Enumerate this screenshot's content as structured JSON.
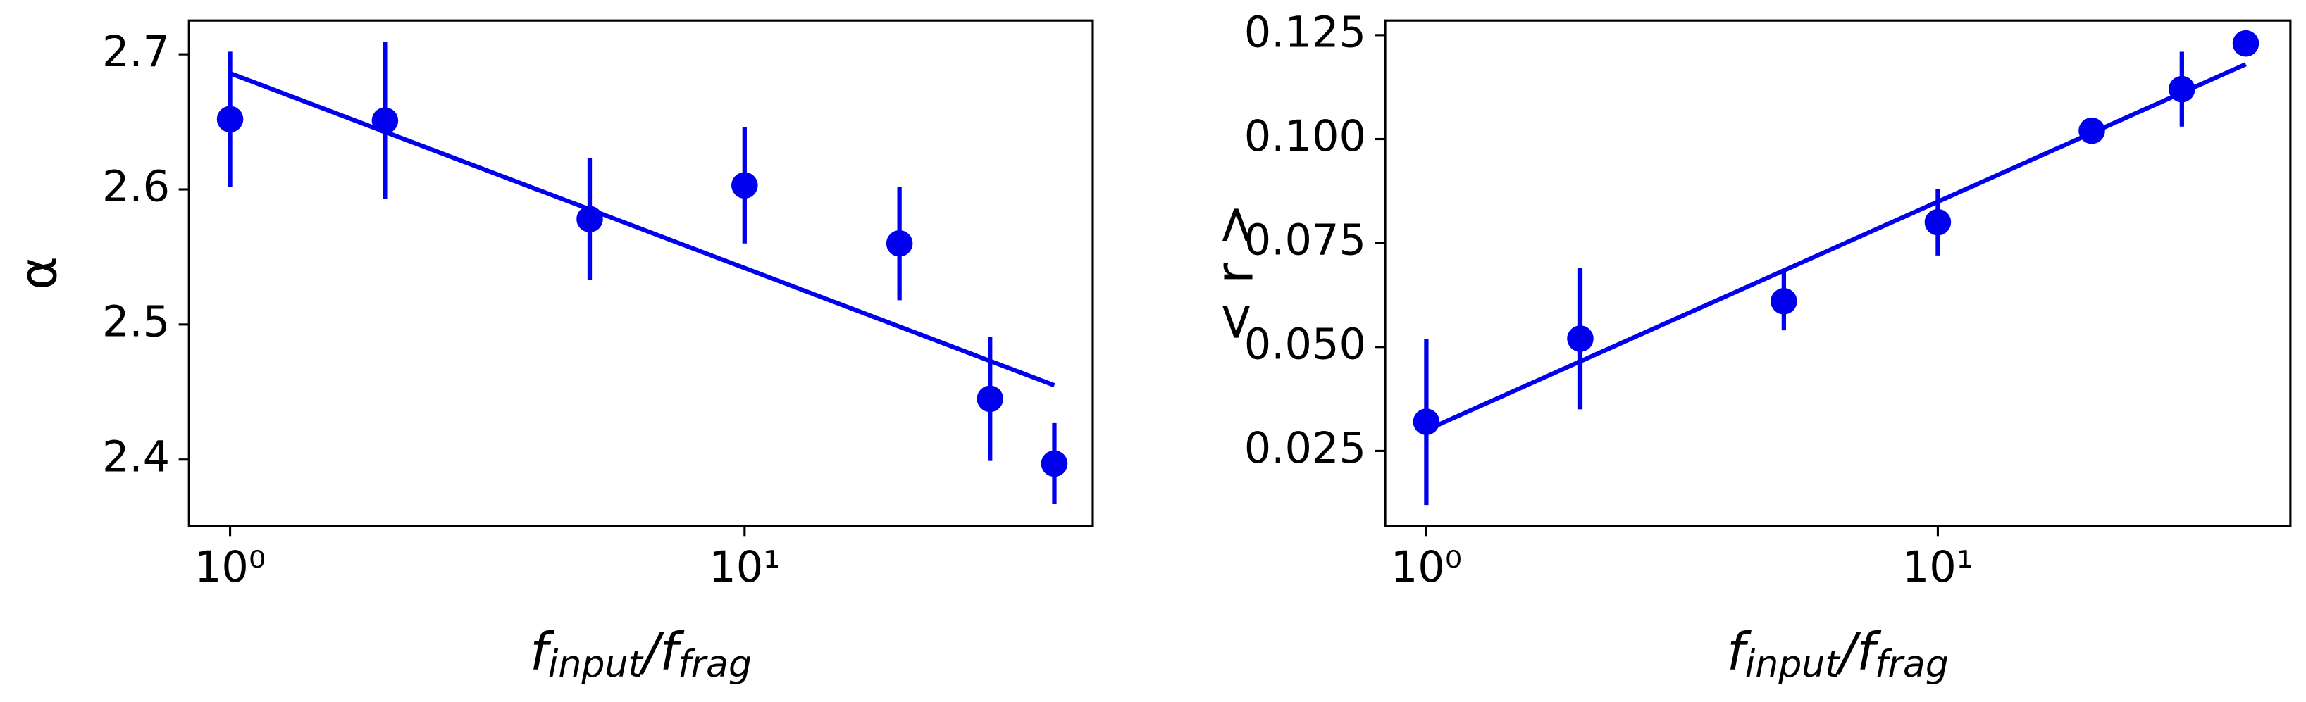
{
  "chart_data": [
    {
      "type": "errorbar",
      "color": "#0000ee",
      "x": [
        1,
        2,
        5,
        10,
        20,
        30,
        40
      ],
      "values": [
        2.652,
        2.651,
        2.578,
        2.603,
        2.56,
        2.445,
        2.397
      ],
      "errors": [
        0.05,
        0.058,
        0.045,
        0.043,
        0.042,
        0.046,
        0.03
      ],
      "fit": {
        "x": [
          1,
          40
        ],
        "y": [
          2.686,
          2.455
        ]
      },
      "xlog": true,
      "xlim": [
        0.832,
        47.5
      ],
      "ylim": [
        2.351,
        2.725
      ],
      "xticks": [
        {
          "value": 1,
          "label": "10⁰"
        },
        {
          "value": 10,
          "label": "10¹"
        }
      ],
      "yticks": [
        2.4,
        2.5,
        2.6,
        2.7
      ],
      "xlabel": [
        "f",
        "input",
        "/f",
        "frag"
      ],
      "ylabel": "α"
    },
    {
      "type": "errorbar",
      "color": "#0000ee",
      "x": [
        1,
        2,
        5,
        10,
        20,
        30,
        40
      ],
      "values": [
        0.032,
        0.052,
        0.061,
        0.08,
        0.102,
        0.112,
        0.123
      ],
      "errors": [
        0.02,
        0.017,
        0.007,
        0.008,
        0.002,
        0.009,
        0.001
      ],
      "fit": {
        "x": [
          1,
          40
        ],
        "y": [
          0.03,
          0.118
        ]
      },
      "xlog": true,
      "xlim": [
        0.831,
        48.9
      ],
      "ylim": [
        0.007,
        0.1285
      ],
      "xticks": [
        {
          "value": 1,
          "label": "10⁰"
        },
        {
          "value": 10,
          "label": "10¹"
        }
      ],
      "yticks": [
        0.025,
        {
          "value": 0.05,
          "label": "0.050"
        },
        0.075,
        {
          "value": 0.1,
          "label": "0.100"
        },
        0.125
      ],
      "xlabel": [
        "f",
        "input",
        "/f",
        "frag"
      ],
      "ylabel": "< r >"
    }
  ]
}
